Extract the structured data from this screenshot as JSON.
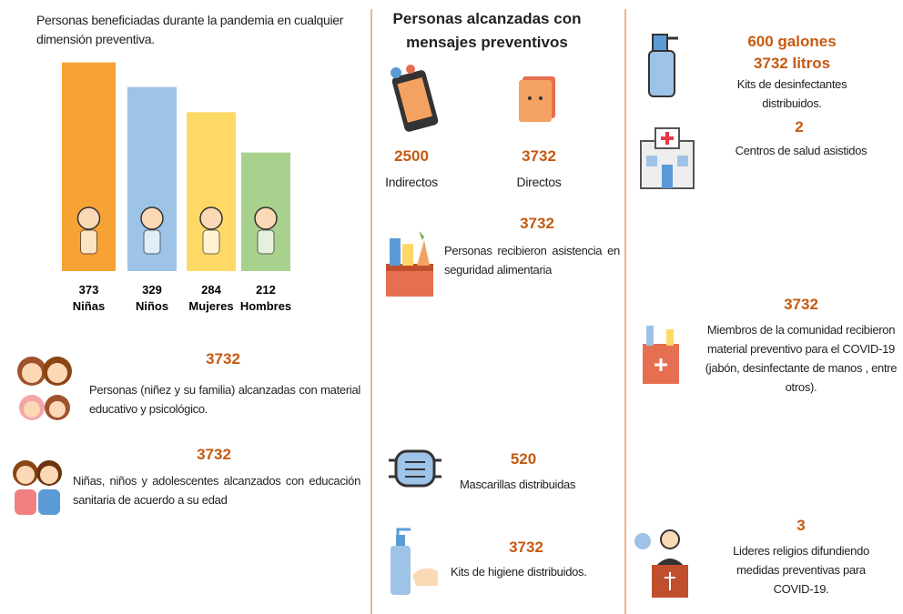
{
  "left": {
    "title": "Personas beneficiadas durante la pandemia en cualquier dimensión preventiva.",
    "bars": [
      {
        "value": 373,
        "label": "Niñas",
        "color": "#f7a234"
      },
      {
        "value": 329,
        "label": "Niños",
        "color": "#9dc3e6"
      },
      {
        "value": 284,
        "label": "Mujeres",
        "color": "#ffd966"
      },
      {
        "value": 212,
        "label": "Hombres",
        "color": "#a9d18e"
      }
    ],
    "items": [
      {
        "value": 3732,
        "text": "Personas (niñez y su familia) alcanzadas con material educativo y psicológico."
      },
      {
        "value": 3732,
        "text": "Niñas, niños y adolescentes alcanzados con educación sanitaria de acuerdo a su edad"
      }
    ]
  },
  "middle": {
    "title": "Personas alcanzadas con mensajes preventivos",
    "reach": [
      {
        "value": 2500,
        "label": "Indirectos"
      },
      {
        "value": 3732,
        "label": "Directos"
      }
    ],
    "items": [
      {
        "value": 3732,
        "text": "Personas recibieron asistencia en seguridad alimentaria"
      },
      {
        "value": 520,
        "text": "Mascarillas distribuidas"
      },
      {
        "value": 3732,
        "text": "Kits de higiene distribuidos."
      }
    ]
  },
  "right": {
    "disinfectant": {
      "lines": [
        "600 galones",
        "3732 litros"
      ],
      "text": "Kits de desinfectantes distribuidos."
    },
    "items": [
      {
        "value": 2,
        "text": "Centros de salud asistidos"
      },
      {
        "value": 3732,
        "text": "Miembros de la comunidad recibieron material preventivo para el COVID-19 (jabón, desinfectante de manos , entre otros)."
      },
      {
        "value": 3,
        "text": "Lideres religios difundiendo medidas preventivas para COVID-19."
      }
    ]
  }
}
